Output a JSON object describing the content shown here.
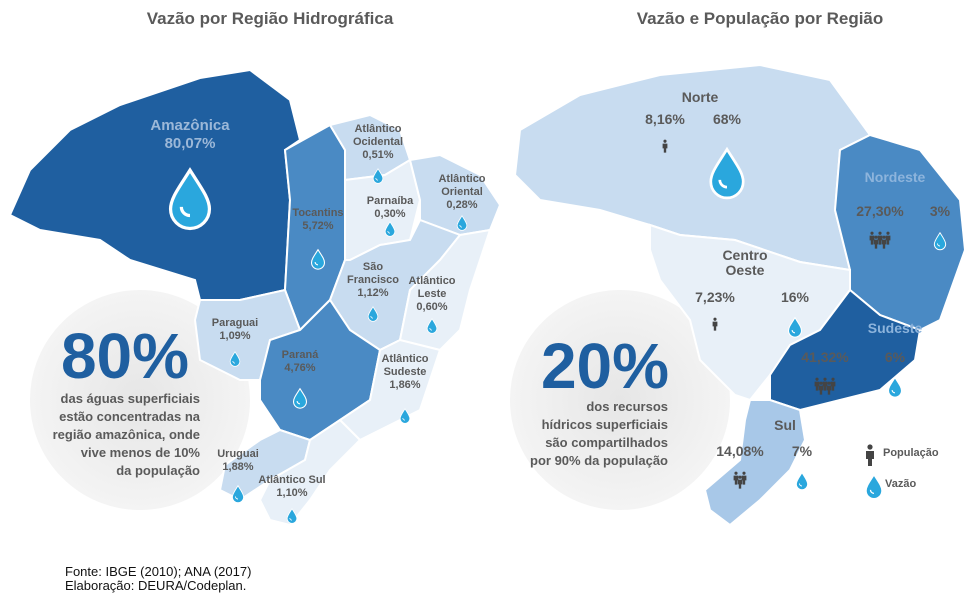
{
  "left": {
    "title": "Vazão por Região Hidrográfica",
    "regions": [
      {
        "name": [
          "Amazônica"
        ],
        "value": "80,07%"
      },
      {
        "name": [
          "Atlântico",
          "Ocidental"
        ],
        "value": "0,51%"
      },
      {
        "name": [
          "Tocantins"
        ],
        "value": "5,72%"
      },
      {
        "name": [
          "Parnaíba"
        ],
        "value": "0,30%"
      },
      {
        "name": [
          "Atlântico",
          "Oriental"
        ],
        "value": "0,28%"
      },
      {
        "name": [
          "São",
          "Francisco"
        ],
        "value": "1,12%"
      },
      {
        "name": [
          "Atlântico",
          "Leste"
        ],
        "value": "0,60%"
      },
      {
        "name": [
          "Paraguai"
        ],
        "value": "1,09%"
      },
      {
        "name": [
          "Paraná"
        ],
        "value": "4,76%"
      },
      {
        "name": [
          "Atlântico",
          "Sudeste"
        ],
        "value": "1,86%"
      },
      {
        "name": [
          "Uruguai"
        ],
        "value": "1,88%"
      },
      {
        "name": [
          "Atlântico Sul"
        ],
        "value": "1,10%"
      }
    ],
    "highlight": "80%",
    "caption": [
      "das águas superficiais",
      "estão concentradas na",
      "região amazônica, onde",
      "vive menos de 10%",
      "da população"
    ]
  },
  "right": {
    "title": "Vazão e População por Região",
    "regions": [
      {
        "name": [
          "Norte"
        ],
        "population": "8,16%",
        "flow": "68%"
      },
      {
        "name": [
          "Nordeste"
        ],
        "population": "27,30%",
        "flow": "3%"
      },
      {
        "name": [
          "Centro",
          "Oeste"
        ],
        "population": "7,23%",
        "flow": "16%"
      },
      {
        "name": [
          "Sudeste"
        ],
        "population": "41,32%",
        "flow": "6%"
      },
      {
        "name": [
          "Sul"
        ],
        "population": "14,08%",
        "flow": "7%"
      }
    ],
    "highlight": "20%",
    "caption": [
      "dos recursos",
      "hídricos superficiais",
      "são compartilhados",
      "por 90% da população"
    ],
    "legend": [
      "População",
      "Vazão"
    ]
  },
  "source": [
    "Fonte: IBGE (2010); ANA (2017)",
    "Elaboração: DEURA/Codeplan."
  ]
}
